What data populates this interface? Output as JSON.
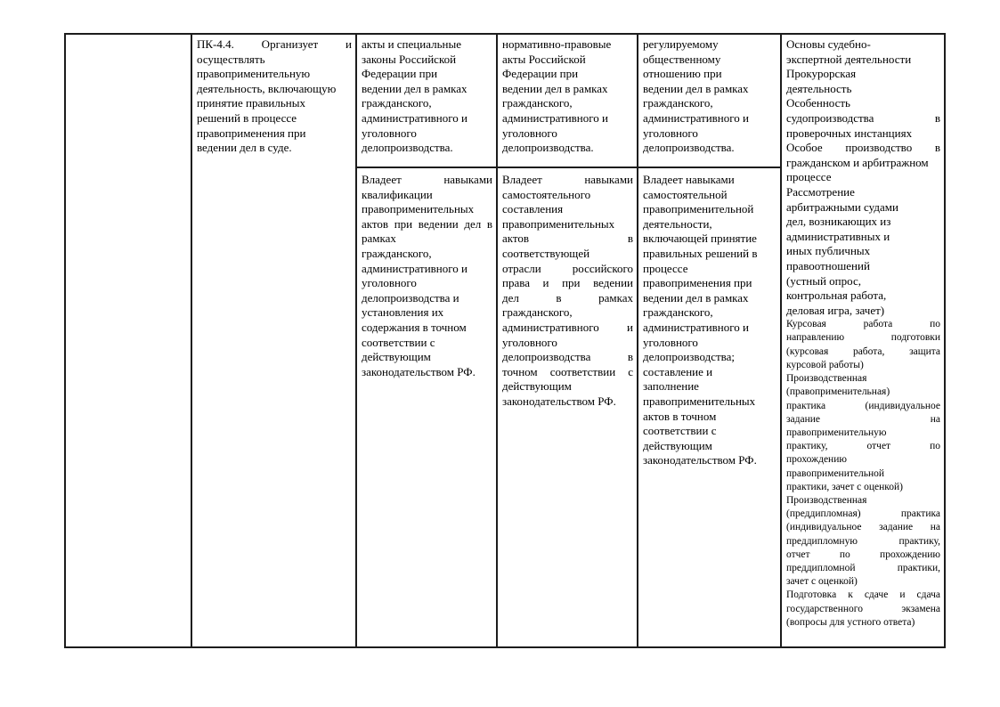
{
  "document": {
    "table": {
      "competency": {
        "lines": [
          {
            "t": "ПК-4.4. Организует и",
            "j": true
          },
          {
            "t": "осуществлять"
          },
          {
            "t": "правоприменительную"
          },
          {
            "t": "деятельность, включающую"
          },
          {
            "t": "принятие правильных"
          },
          {
            "t": "решений в процессе"
          },
          {
            "t": "правоприменения при"
          },
          {
            "t": "ведении дел в суде."
          }
        ]
      },
      "skill1": {
        "top": {
          "lines": [
            {
              "t": "акты и специальные"
            },
            {
              "t": "законы Российской"
            },
            {
              "t": "Федерации при"
            },
            {
              "t": "ведении дел в рамках"
            },
            {
              "t": "гражданского,"
            },
            {
              "t": "административного и"
            },
            {
              "t": "уголовного"
            },
            {
              "t": "делопроизводства."
            }
          ]
        },
        "bottom": {
          "lines": [
            {
              "t": "Владеет навыками",
              "j": true
            },
            {
              "t": "квалификации"
            },
            {
              "t": "правоприменительных"
            },
            {
              "t": "актов при ведении дел в",
              "j": true
            },
            {
              "t": "рамках"
            },
            {
              "t": "гражданского,"
            },
            {
              "t": "административного и"
            },
            {
              "t": "уголовного"
            },
            {
              "t": "делопроизводства и"
            },
            {
              "t": "установления их"
            },
            {
              "t": "содержания в точном"
            },
            {
              "t": "соответствии с"
            },
            {
              "t": "действующим"
            },
            {
              "t": "законодательством РФ."
            }
          ]
        }
      },
      "skill2": {
        "top": {
          "lines": [
            {
              "t": "нормативно-правовые"
            },
            {
              "t": "акты Российской"
            },
            {
              "t": "Федерации при"
            },
            {
              "t": "ведении дел в рамках"
            },
            {
              "t": "гражданского,"
            },
            {
              "t": "административного и"
            },
            {
              "t": "уголовного"
            },
            {
              "t": "делопроизводства."
            }
          ]
        },
        "bottom": {
          "lines": [
            {
              "t": "Владеет навыками",
              "j": true
            },
            {
              "t": "самостоятельного"
            },
            {
              "t": "составления"
            },
            {
              "t": "правоприменительных"
            },
            {
              "t": "актов в",
              "j": true
            },
            {
              "t": "соответствующей"
            },
            {
              "t": "отрасли российского",
              "j": true
            },
            {
              "t": "права и при ведении",
              "j": true
            },
            {
              "t": "дел в рамках",
              "j": true
            },
            {
              "t": "гражданского,"
            },
            {
              "t": "административного и",
              "j": true
            },
            {
              "t": "уголовного"
            },
            {
              "t": "делопроизводства в",
              "j": true
            },
            {
              "t": "точном соответствии с",
              "j": true
            },
            {
              "t": "действующим"
            },
            {
              "t": "законодательством РФ."
            }
          ]
        }
      },
      "skill3": {
        "top": {
          "lines": [
            {
              "t": "регулируемому"
            },
            {
              "t": "общественному"
            },
            {
              "t": "отношению при"
            },
            {
              "t": "ведении дел в рамках"
            },
            {
              "t": "гражданского,"
            },
            {
              "t": "административного и"
            },
            {
              "t": "уголовного"
            },
            {
              "t": "делопроизводства."
            }
          ]
        },
        "bottom": {
          "lines": [
            {
              "t": "Владеет навыками"
            },
            {
              "t": "самостоятельной"
            },
            {
              "t": "правоприменительной"
            },
            {
              "t": "деятельности,"
            },
            {
              "t": "включающей принятие"
            },
            {
              "t": "правильных решений в"
            },
            {
              "t": "процессе"
            },
            {
              "t": "правоприменения при"
            },
            {
              "t": "ведении дел в рамках"
            },
            {
              "t": "гражданского,"
            },
            {
              "t": "административного и"
            },
            {
              "t": "уголовного"
            },
            {
              "t": "делопроизводства;"
            },
            {
              "t": "составление и"
            },
            {
              "t": "заполнение"
            },
            {
              "t": "правоприменительных"
            },
            {
              "t": "актов в точном"
            },
            {
              "t": "соответствии с"
            },
            {
              "t": "действующим"
            },
            {
              "t": "законодательством РФ."
            }
          ]
        }
      },
      "disciplines": {
        "main": {
          "lines": [
            {
              "t": "Основы судебно-"
            },
            {
              "t": "экспертной деятельности"
            },
            {
              "t": "Прокурорская"
            },
            {
              "t": "деятельность"
            },
            {
              "t": "Особенность"
            },
            {
              "t": "судопроизводства в",
              "j": true
            },
            {
              "t": "проверочных инстанциях"
            },
            {
              "t": "Особое производство в",
              "j": true
            },
            {
              "t": "гражданском и арбитражном"
            },
            {
              "t": "процессе"
            },
            {
              "t": "Рассмотрение"
            },
            {
              "t": "арбитражными судами"
            },
            {
              "t": "дел, возникающих из"
            },
            {
              "t": "административных и"
            },
            {
              "t": "иных публичных"
            },
            {
              "t": "правоотношений"
            },
            {
              "t": "(устный опрос,"
            },
            {
              "t": "контрольная работа,"
            },
            {
              "t": "деловая игра, зачет)"
            }
          ]
        },
        "small": {
          "lines": [
            {
              "t": "Курсовая работа по",
              "j": true
            },
            {
              "t": "направлению подготовки",
              "j": true
            },
            {
              "t": "(курсовая работа, защита",
              "j": true
            },
            {
              "t": "курсовой работы)"
            },
            {
              "t": "Производственная"
            },
            {
              "t": "(правоприменительная)"
            },
            {
              "t": "практика (индивидуальное",
              "j": true
            },
            {
              "t": "задание на",
              "j": true
            },
            {
              "t": "правоприменительную"
            },
            {
              "t": "практику, отчет по",
              "j": true
            },
            {
              "t": "прохождению"
            },
            {
              "t": "правоприменительной"
            },
            {
              "t": "практики, зачет с оценкой)"
            },
            {
              "t": "Производственная"
            },
            {
              "t": "(преддипломная) практика",
              "j": true
            },
            {
              "t": "(индивидуальное задание на",
              "j": true
            },
            {
              "t": "преддипломную практику,",
              "j": true
            },
            {
              "t": "отчет по прохождению",
              "j": true
            },
            {
              "t": "преддипломной практики,",
              "j": true
            },
            {
              "t": "зачет с оценкой)"
            },
            {
              "t": "Подготовка к сдаче и сдача",
              "j": true
            },
            {
              "t": "государственного экзамена",
              "j": true
            },
            {
              "t": "(вопросы для устного ответа)"
            }
          ]
        }
      }
    }
  }
}
